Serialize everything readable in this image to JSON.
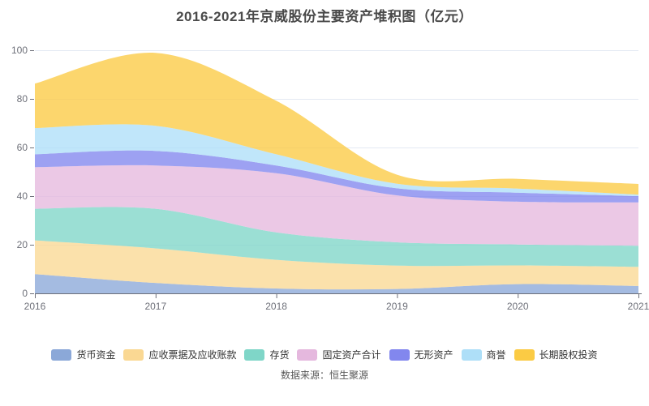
{
  "title": "2016-2021年京威股份主要资产堆积图（亿元）",
  "source_note": "数据来源：恒生聚源",
  "axis": {
    "x_labels": [
      "2016",
      "2017",
      "2018",
      "2019",
      "2020",
      "2021"
    ],
    "y_ticks": [
      0,
      20,
      40,
      60,
      80,
      100
    ]
  },
  "colors": {
    "axis_line": "#6E7079",
    "axis_label": "#6E7079",
    "gridline": "#E3E9F3",
    "title_text": "#4a4a4a"
  },
  "chart_data": {
    "type": "area",
    "stacked": true,
    "smooth": true,
    "title": "2016-2021年京威股份主要资产堆积图（亿元）",
    "xlabel": "",
    "ylabel": "亿元",
    "ylim": [
      0,
      100
    ],
    "yticks": [
      0,
      20,
      40,
      60,
      80,
      100
    ],
    "grid": true,
    "legend_position": "bottom",
    "categories": [
      "2016",
      "2017",
      "2018",
      "2019",
      "2020",
      "2021"
    ],
    "series": [
      {
        "name": "货币资金",
        "color": "#8BA8D8",
        "values": [
          7.9,
          4.3,
          2.0,
          1.8,
          3.8,
          3.0
        ]
      },
      {
        "name": "应收票据及应收账款",
        "color": "#FAD893",
        "values": [
          13.9,
          14.2,
          11.8,
          9.6,
          7.7,
          7.9
        ]
      },
      {
        "name": "存货",
        "color": "#7FD6C8",
        "values": [
          13.0,
          16.3,
          11.3,
          9.6,
          8.6,
          8.7
        ]
      },
      {
        "name": "固定资产合计",
        "color": "#E5B8DE",
        "values": [
          17.1,
          17.8,
          24.3,
          19.3,
          17.6,
          17.8
        ]
      },
      {
        "name": "无形资产",
        "color": "#8287EE",
        "values": [
          5.3,
          6.0,
          3.2,
          2.9,
          3.7,
          2.6
        ]
      },
      {
        "name": "商誉",
        "color": "#AEDFF8",
        "values": [
          10.8,
          10.3,
          4.6,
          1.9,
          1.7,
          0.6
        ]
      },
      {
        "name": "长期股权投资",
        "color": "#FBCB44",
        "values": [
          18.3,
          30.0,
          22.0,
          3.7,
          4.0,
          4.4
        ]
      }
    ],
    "stack_totals": [
      86.3,
      98.9,
      79.2,
      48.8,
      47.1,
      45.0
    ]
  }
}
